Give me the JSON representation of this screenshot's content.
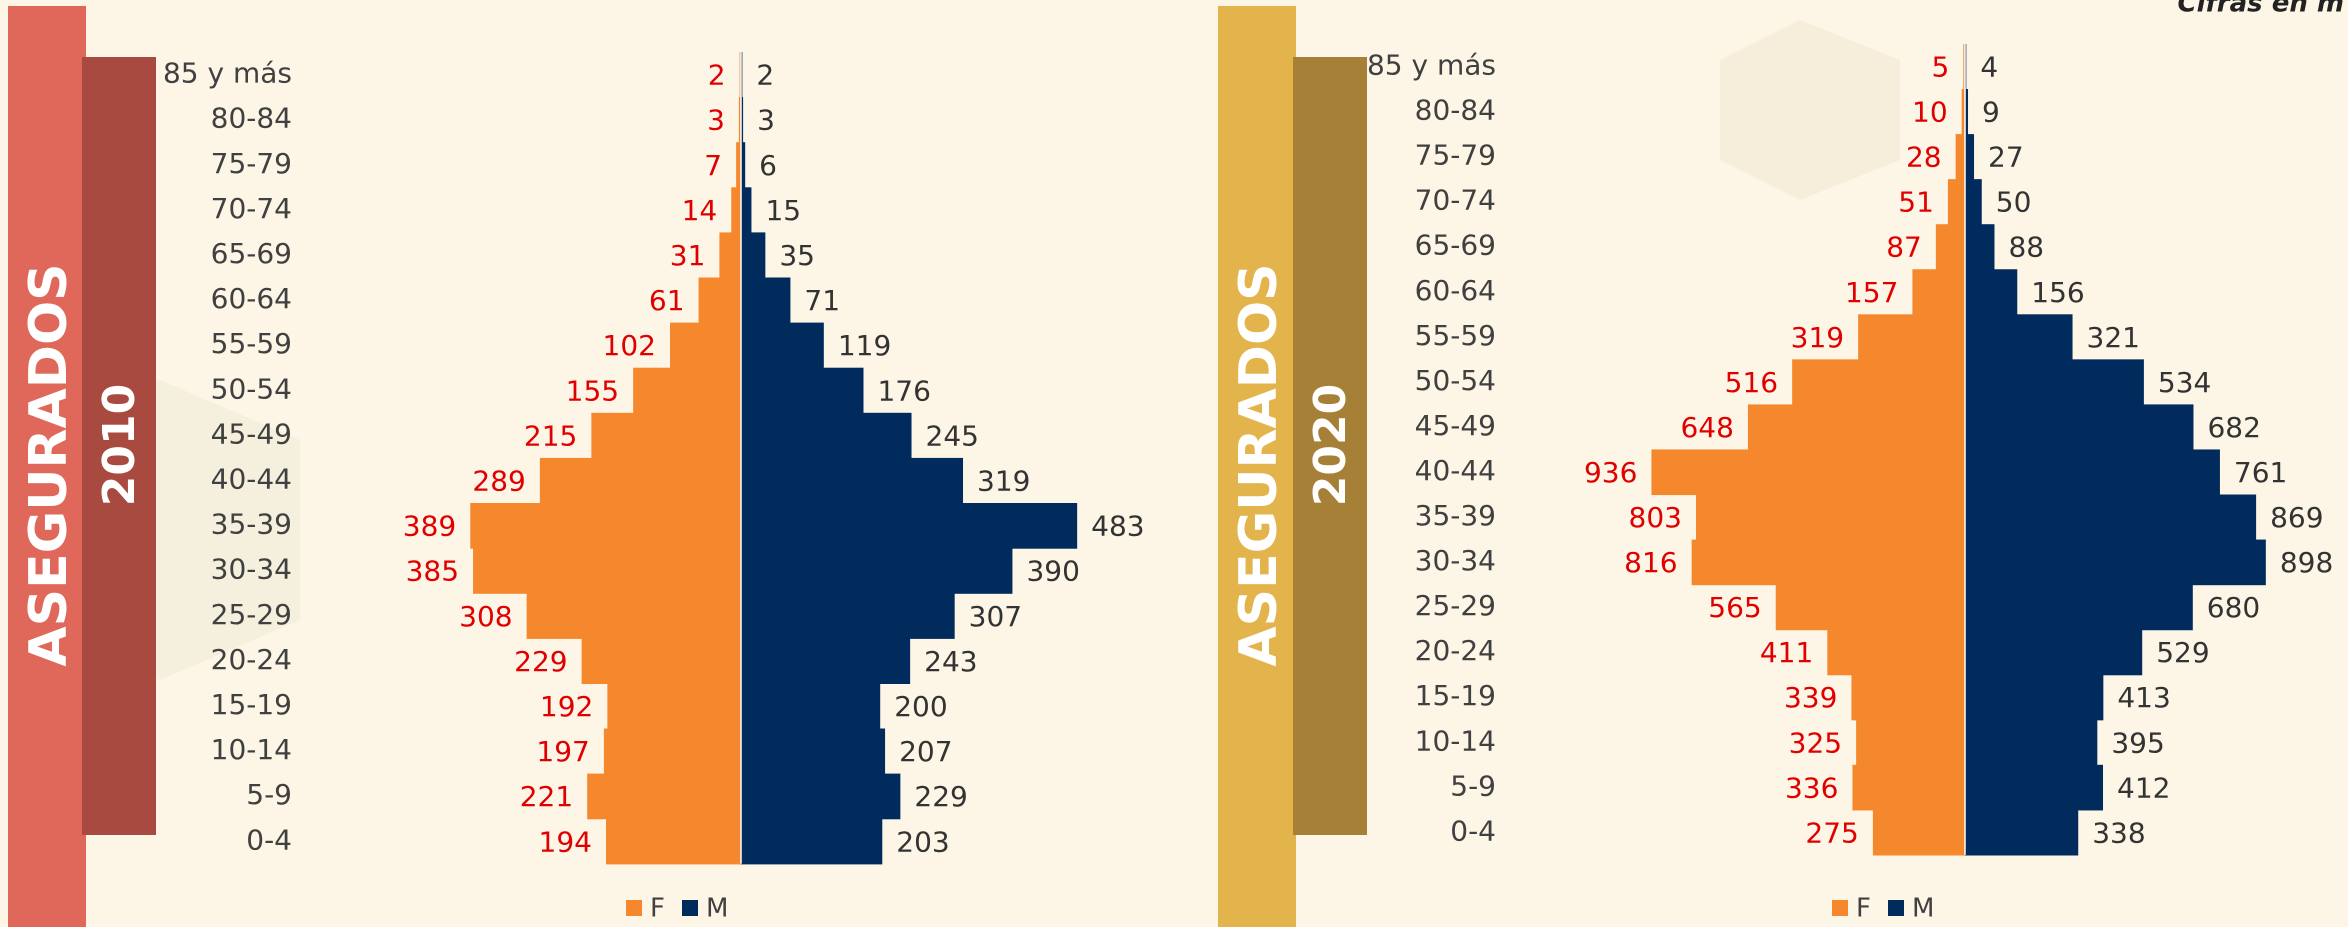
{
  "note_top": "Cifras en m",
  "chart_data": [
    {
      "type": "pyramid",
      "side_title": "ASEGURADOS",
      "side_year": "2010",
      "categories": [
        "85 y más",
        "80-84",
        "75-79",
        "70-74",
        "65-69",
        "60-64",
        "55-59",
        "50-54",
        "45-49",
        "40-44",
        "35-39",
        "30-34",
        "25-29",
        "20-24",
        "15-19",
        "10-14",
        "5-9",
        "0-4"
      ],
      "xlim": [
        -500,
        500
      ],
      "series": [
        {
          "name": "F",
          "color": "#f5882d",
          "values": [
            2,
            3,
            7,
            14,
            31,
            61,
            102,
            155,
            215,
            289,
            389,
            385,
            308,
            229,
            192,
            197,
            221,
            194
          ]
        },
        {
          "name": "M",
          "color": "#002b5c",
          "values": [
            2,
            3,
            6,
            15,
            35,
            71,
            119,
            176,
            245,
            319,
            483,
            390,
            307,
            243,
            200,
            207,
            229,
            203
          ]
        }
      ]
    },
    {
      "type": "pyramid",
      "side_title": "ASEGURADOS",
      "side_year": "2020",
      "categories": [
        "85 y más",
        "80-84",
        "75-79",
        "70-74",
        "65-69",
        "60-64",
        "55-59",
        "50-54",
        "45-49",
        "40-44",
        "35-39",
        "30-34",
        "25-29",
        "20-24",
        "15-19",
        "10-14",
        "5-9",
        "0-4"
      ],
      "xlim": [
        -1000,
        1000
      ],
      "series": [
        {
          "name": "F",
          "color": "#f5882d",
          "values": [
            5,
            10,
            28,
            51,
            87,
            157,
            319,
            516,
            648,
            936,
            803,
            816,
            565,
            411,
            339,
            325,
            336,
            275
          ]
        },
        {
          "name": "M",
          "color": "#002b5c",
          "values": [
            4,
            9,
            27,
            50,
            88,
            156,
            321,
            534,
            682,
            761,
            869,
            898,
            680,
            529,
            413,
            395,
            412,
            338
          ]
        }
      ]
    }
  ]
}
